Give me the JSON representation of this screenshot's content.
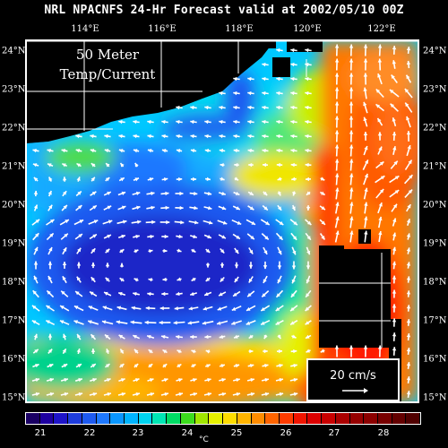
{
  "title": "NRL NPACNFS 24-Hr Forecast valid at 2002/05/10 00Z",
  "inset_label": {
    "line1": "50 Meter",
    "line2": "Temp/Current"
  },
  "longitude_labels": [
    "114°E",
    "116°E",
    "118°E",
    "120°E",
    "122°E"
  ],
  "latitude_labels": [
    "24°N",
    "23°N",
    "22°N",
    "21°N",
    "20°N",
    "19°N",
    "18°N",
    "17°N",
    "16°N",
    "15°N"
  ],
  "reference_vector": {
    "label": "20 cm/s",
    "color": "#ffffff"
  },
  "colorbar": {
    "unit": "°C",
    "tick_labels": [
      "21",
      "22",
      "23",
      "24",
      "25",
      "26",
      "27",
      "28"
    ],
    "colors": [
      "#1a0064",
      "#1e00a0",
      "#1e14c8",
      "#1e3cdc",
      "#1e5af0",
      "#1e78ff",
      "#0a96ff",
      "#00b4ff",
      "#00d2f0",
      "#00e6b4",
      "#00dc64",
      "#3cdc1e",
      "#a0e600",
      "#e6f000",
      "#ffdc00",
      "#ffb400",
      "#ff8c00",
      "#ff6400",
      "#ff3c00",
      "#f01400",
      "#dc0000",
      "#c80000",
      "#aa0000",
      "#960000",
      "#8c0000",
      "#780000",
      "#640000",
      "#500000"
    ]
  },
  "map": {
    "land_color": "#000000",
    "grid_color": "#ffffff",
    "vector_color": "#ffffff"
  }
}
